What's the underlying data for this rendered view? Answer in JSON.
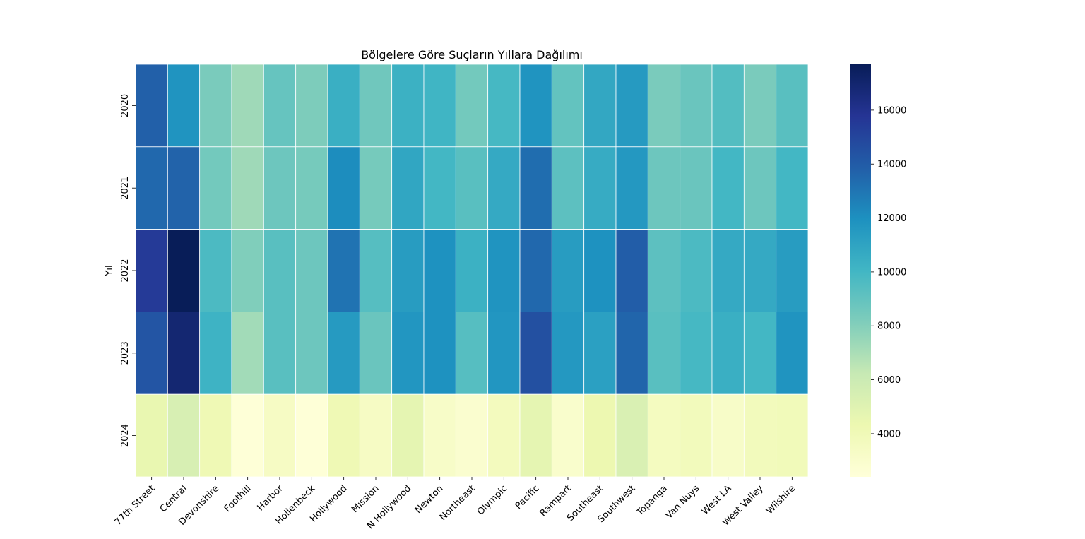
{
  "chart_data": {
    "type": "heatmap",
    "title": "Bölgelere Göre Suçların Yıllara Dağılımı",
    "xlabel": "",
    "ylabel": "Yıl",
    "x_categories": [
      "77th Street",
      "Central",
      "Devonshire",
      "Foothill",
      "Harbor",
      "Hollenbeck",
      "Hollywood",
      "Mission",
      "N Hollywood",
      "Newton",
      "Northeast",
      "Olympic",
      "Pacific",
      "Rampart",
      "Southeast",
      "Southwest",
      "Topanga",
      "Van Nuys",
      "West LA",
      "West Valley",
      "Wilshire"
    ],
    "y_categories": [
      "2020",
      "2021",
      "2022",
      "2023",
      "2024"
    ],
    "values": [
      [
        13800,
        11800,
        8300,
        7300,
        8900,
        8200,
        10400,
        8600,
        10300,
        10100,
        8500,
        9900,
        11800,
        9000,
        10800,
        11500,
        8300,
        8800,
        9500,
        8300,
        9300
      ],
      [
        13500,
        13700,
        8500,
        7300,
        8700,
        8400,
        12100,
        8400,
        10900,
        10000,
        9300,
        10700,
        13300,
        9200,
        10600,
        11600,
        8700,
        8800,
        10000,
        8700,
        10000
      ],
      [
        15500,
        17700,
        9700,
        8100,
        9300,
        8700,
        13100,
        9400,
        11400,
        11900,
        10300,
        11800,
        13500,
        11400,
        11900,
        13900,
        9200,
        9700,
        10700,
        10700,
        11400
      ],
      [
        14300,
        16900,
        10200,
        7200,
        9300,
        8700,
        11500,
        8800,
        11700,
        11900,
        9400,
        11700,
        14500,
        11600,
        11200,
        13600,
        9300,
        9900,
        10400,
        10000,
        11800
      ],
      [
        4500,
        5400,
        4100,
        2500,
        3400,
        2500,
        4100,
        3400,
        4700,
        3200,
        2900,
        3700,
        4700,
        3000,
        4300,
        5300,
        3600,
        3800,
        3200,
        3800,
        3900
      ]
    ],
    "colorbar": {
      "colormap": "YlGnBu",
      "min": 2400,
      "max": 17700,
      "ticks": [
        4000,
        6000,
        8000,
        10000,
        12000,
        14000,
        16000
      ]
    },
    "grid": false,
    "legend": "colorbar-right"
  }
}
